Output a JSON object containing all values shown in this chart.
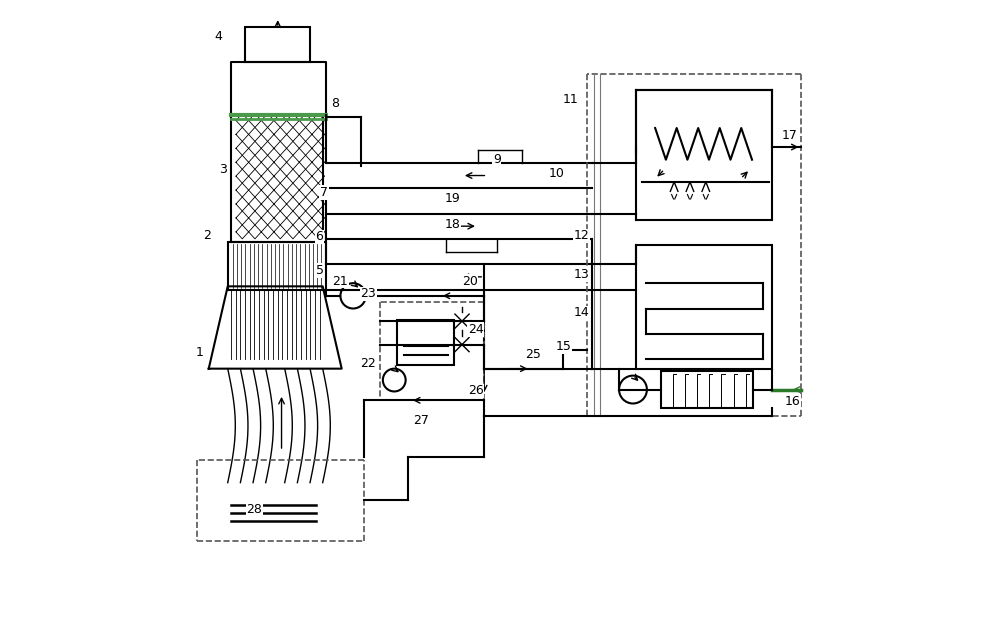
{
  "bg_color": "#ffffff",
  "line_color": "#000000",
  "dashed_color": "#555555",
  "figsize": [
    10.0,
    6.36
  ],
  "dpi": 100
}
